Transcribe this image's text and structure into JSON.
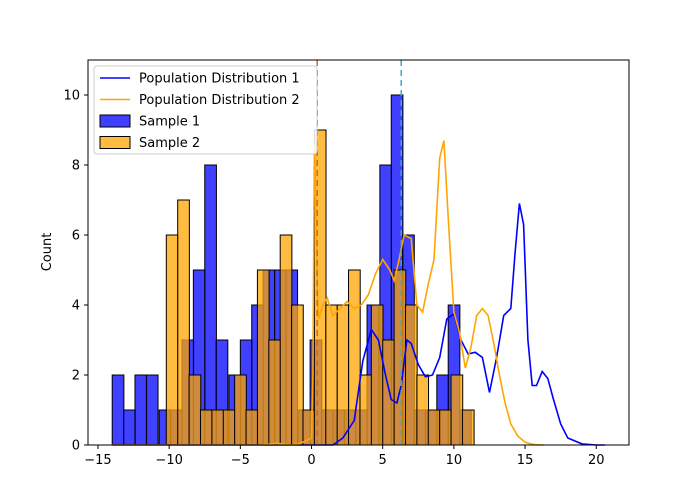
{
  "chart_data": {
    "type": "histogram",
    "xlabel": "",
    "ylabel": "Count",
    "xlim": [
      -15.7,
      22.3
    ],
    "ylim": [
      0,
      11
    ],
    "xticks": [
      -15,
      -10,
      -5,
      0,
      5,
      10,
      15,
      20
    ],
    "yticks": [
      0,
      2,
      4,
      6,
      8,
      10
    ],
    "bin_width": 0.82,
    "legend_position": "upper left",
    "colors": {
      "sample1": "#0000ff",
      "sample2": "#ffa500",
      "overlap": "#c87a2a",
      "pop1": "#0000ff",
      "pop2": "#ffa500",
      "mean1_line": "#d2691e",
      "mean2_line": "#3ea6d6"
    },
    "legend": [
      {
        "label": "Population Distribution 1",
        "kind": "line",
        "color": "#0000ff"
      },
      {
        "label": "Population Distribution 2",
        "kind": "line",
        "color": "#ffa500"
      },
      {
        "label": "Sample 1",
        "kind": "patch",
        "color": "#0000ff"
      },
      {
        "label": "Sample 2",
        "kind": "patch",
        "color": "#ffa500"
      }
    ],
    "series": [
      {
        "name": "Sample 1",
        "bin_starts": [
          -14.0,
          -13.2,
          -12.4,
          -11.6,
          -10.7,
          -9.9,
          -9.1,
          -8.3,
          -7.5,
          -6.7,
          -5.8,
          -5.0,
          -4.2,
          -3.4,
          -2.6,
          -1.8,
          -0.9,
          -0.1,
          0.7,
          1.5,
          2.3,
          3.1,
          3.9,
          4.8,
          5.6,
          6.4,
          7.2,
          8.0,
          8.8,
          9.6,
          10.4
        ],
        "counts": [
          2,
          1,
          2,
          2,
          1,
          1,
          3,
          5,
          8,
          3,
          2,
          3,
          4,
          5,
          5,
          5,
          1,
          3,
          1,
          1,
          1,
          1,
          4,
          8,
          10,
          6,
          1,
          1,
          2,
          4,
          1
        ]
      },
      {
        "name": "Sample 2",
        "bin_starts": [
          -10.2,
          -9.4,
          -8.6,
          -7.8,
          -7.0,
          -6.2,
          -5.4,
          -4.6,
          -3.8,
          -3.0,
          -2.2,
          -1.4,
          -0.6,
          0.2,
          1.0,
          1.8,
          2.6,
          3.4,
          4.2,
          5.0,
          5.8,
          6.6,
          7.4,
          8.2,
          9.0,
          9.8,
          10.6
        ],
        "counts": [
          6,
          7,
          2,
          1,
          1,
          1,
          2,
          1,
          5,
          3,
          6,
          4,
          1,
          9,
          4,
          4,
          5,
          2,
          4,
          3,
          5,
          4,
          2,
          1,
          1,
          2,
          1
        ]
      }
    ],
    "population_1": {
      "name": "Population Distribution 1",
      "x": [
        -14,
        1.5,
        2.2,
        3.0,
        3.6,
        4.2,
        4.7,
        5.2,
        5.6,
        6.0,
        6.3,
        6.7,
        7.0,
        7.5,
        8.0,
        8.5,
        9.0,
        9.5,
        10.0,
        10.5,
        11.0,
        11.5,
        12.0,
        12.5,
        13.0,
        13.5,
        14.0,
        14.3,
        14.6,
        14.9,
        15.2,
        15.5,
        15.8,
        16.2,
        16.6,
        17.0,
        17.5,
        18.0,
        19.0,
        20.0,
        20.6
      ],
      "y": [
        0,
        0,
        0.2,
        0.7,
        2.4,
        3.3,
        3.0,
        2.0,
        1.3,
        1.2,
        1.7,
        3.0,
        2.9,
        2.3,
        1.95,
        2.0,
        2.5,
        3.6,
        3.75,
        3.0,
        2.6,
        2.65,
        2.5,
        1.5,
        2.5,
        3.7,
        3.9,
        5.5,
        6.9,
        6.3,
        3.0,
        1.7,
        1.7,
        2.1,
        1.9,
        1.3,
        0.6,
        0.2,
        0.03,
        0.0,
        0.0
      ]
    },
    "population_2": {
      "name": "Population Distribution 2",
      "x": [
        -14,
        -3.5,
        -3.0,
        -2.5,
        -2.0,
        -1.5,
        -1.0,
        -0.5,
        0.0,
        0.1,
        0.2,
        0.3,
        0.4,
        0.5,
        0.8,
        1.1,
        1.5,
        2.0,
        2.5,
        3.0,
        3.5,
        4.0,
        4.5,
        5.0,
        5.5,
        5.8,
        6.1,
        6.5,
        7.0,
        7.4,
        7.8,
        8.2,
        8.6,
        9.0,
        9.3,
        9.6,
        10.0,
        10.4,
        10.8,
        11.2,
        11.6,
        12.0,
        12.4,
        12.8,
        13.2,
        13.6,
        14.0,
        14.5,
        15.0,
        15.5,
        16.0,
        16.3
      ],
      "y": [
        0,
        0.0,
        0.02,
        0.05,
        0.03,
        0.0,
        0.02,
        0.1,
        0.2,
        2.0,
        8.6,
        7.0,
        4.6,
        3.6,
        4.0,
        4.2,
        3.7,
        3.9,
        4.1,
        3.9,
        4.0,
        4.3,
        4.9,
        5.3,
        5.0,
        4.7,
        5.2,
        6.0,
        5.9,
        4.0,
        3.8,
        4.6,
        5.3,
        8.2,
        8.7,
        6.5,
        3.8,
        3.2,
        2.2,
        2.8,
        3.7,
        3.9,
        3.7,
        2.9,
        2.0,
        1.2,
        0.6,
        0.25,
        0.08,
        0.02,
        0.0,
        0.0
      ]
    },
    "mean_lines": [
      {
        "x": 0.4,
        "color": "#d2691e"
      },
      {
        "x": 6.3,
        "color": "#3ea6d6"
      }
    ]
  }
}
